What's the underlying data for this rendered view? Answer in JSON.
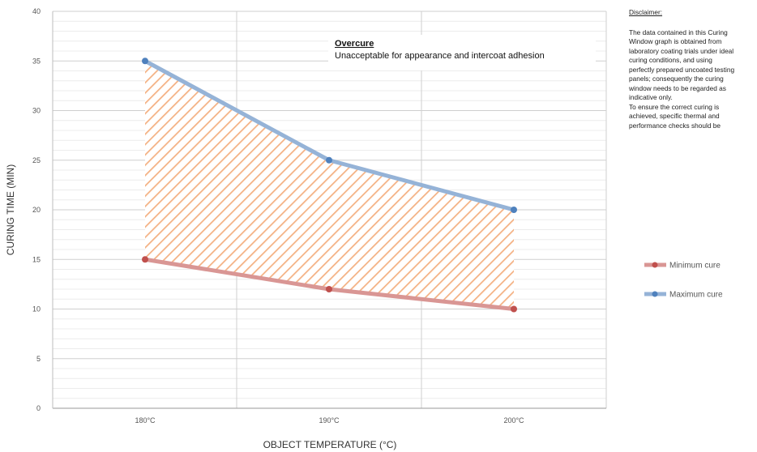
{
  "chart_data": {
    "type": "line",
    "title": "",
    "xlabel": "OBJECT TEMPERATURE (°C)",
    "ylabel": "CURING TIME (MIN)",
    "categories": [
      "180°C",
      "190°C",
      "200°C"
    ],
    "ylim": [
      0,
      40
    ],
    "yticks": [
      "0",
      "5",
      "10",
      "15",
      "20",
      "25",
      "30",
      "35",
      "40"
    ],
    "grid": true,
    "legend_position": "right",
    "series": [
      {
        "name": "Minimum cure",
        "values": [
          15,
          12,
          10
        ],
        "color": "#d99694",
        "marker_color": "#c0504d"
      },
      {
        "name": "Maximum cure",
        "values": [
          35,
          25,
          20
        ],
        "color": "#95b3d7",
        "marker_color": "#4f81bd"
      }
    ],
    "fill_between": {
      "color": "#f4b183",
      "pattern": "diagonal-hatch"
    },
    "annotation": {
      "title": "Overcure",
      "text": "Unacceptable for appearance and intercoat adhesion"
    }
  },
  "disclaimer": {
    "title": "Disclaimer:",
    "lines": [
      "The data contained in this  Curing",
      "Window graph is  obtained from",
      "laboratory coating trials under ideal",
      "curing conditions, and using",
      "perfectly prepared uncoated testing",
      "panels;  consequently the curing",
      "window needs to be regarded as",
      "indicative only.",
      "To ensure the correct curing is",
      "achieved, specific thermal and",
      "performance checks should be"
    ]
  }
}
